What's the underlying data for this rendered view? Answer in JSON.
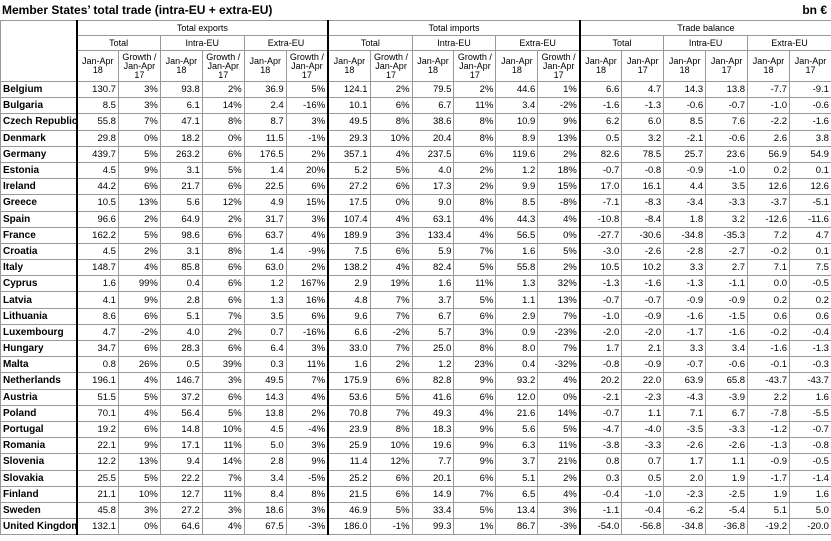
{
  "header": {
    "title": "Member States’ total trade (intra-EU + extra-EU)",
    "unit": "bn €"
  },
  "table": {
    "groups": [
      {
        "name": "Total exports",
        "subgroups": [
          {
            "name": "Total",
            "columns": [
              "Jan-Apr 18",
              "Growth / Jan-Apr 17"
            ]
          },
          {
            "name": "Intra-EU",
            "columns": [
              "Jan-Apr 18",
              "Growth / Jan-Apr 17"
            ]
          },
          {
            "name": "Extra-EU",
            "columns": [
              "Jan-Apr 18",
              "Growth / Jan-Apr 17"
            ]
          }
        ]
      },
      {
        "name": "Total imports",
        "subgroups": [
          {
            "name": "Total",
            "columns": [
              "Jan-Apr 18",
              "Growth / Jan-Apr 17"
            ]
          },
          {
            "name": "Intra-EU",
            "columns": [
              "Jan-Apr 18",
              "Growth / Jan-Apr 17"
            ]
          },
          {
            "name": "Extra-EU",
            "columns": [
              "Jan-Apr 18",
              "Growth / Jan-Apr 17"
            ]
          }
        ]
      },
      {
        "name": "Trade balance",
        "subgroups": [
          {
            "name": "Total",
            "columns": [
              "Jan-Apr 18",
              "Jan-Apr 17"
            ]
          },
          {
            "name": "Intra-EU",
            "columns": [
              "Jan-Apr 18",
              "Jan-Apr 17"
            ]
          },
          {
            "name": "Extra-EU",
            "columns": [
              "Jan-Apr 18",
              "Jan-Apr 17"
            ]
          }
        ]
      }
    ],
    "rows": [
      {
        "country": "Belgium",
        "values": [
          "130.7",
          "3%",
          "93.8",
          "2%",
          "36.9",
          "5%",
          "124.1",
          "2%",
          "79.5",
          "2%",
          "44.6",
          "1%",
          "6.6",
          "4.7",
          "14.3",
          "13.8",
          "-7.7",
          "-9.1"
        ]
      },
      {
        "country": "Bulgaria",
        "values": [
          "8.5",
          "3%",
          "6.1",
          "14%",
          "2.4",
          "-16%",
          "10.1",
          "6%",
          "6.7",
          "11%",
          "3.4",
          "-2%",
          "-1.6",
          "-1.3",
          "-0.6",
          "-0.7",
          "-1.0",
          "-0.6"
        ]
      },
      {
        "country": "Czech Republic",
        "values": [
          "55.8",
          "7%",
          "47.1",
          "8%",
          "8.7",
          "3%",
          "49.5",
          "8%",
          "38.6",
          "8%",
          "10.9",
          "9%",
          "6.2",
          "6.0",
          "8.5",
          "7.6",
          "-2.2",
          "-1.6"
        ]
      },
      {
        "country": "Denmark",
        "values": [
          "29.8",
          "0%",
          "18.2",
          "0%",
          "11.5",
          "-1%",
          "29.3",
          "10%",
          "20.4",
          "8%",
          "8.9",
          "13%",
          "0.5",
          "3.2",
          "-2.1",
          "-0.6",
          "2.6",
          "3.8"
        ]
      },
      {
        "country": "Germany",
        "values": [
          "439.7",
          "5%",
          "263.2",
          "6%",
          "176.5",
          "2%",
          "357.1",
          "4%",
          "237.5",
          "6%",
          "119.6",
          "2%",
          "82.6",
          "78.5",
          "25.7",
          "23.6",
          "56.9",
          "54.9"
        ]
      },
      {
        "country": "Estonia",
        "values": [
          "4.5",
          "9%",
          "3.1",
          "5%",
          "1.4",
          "20%",
          "5.2",
          "5%",
          "4.0",
          "2%",
          "1.2",
          "18%",
          "-0.7",
          "-0.8",
          "-0.9",
          "-1.0",
          "0.2",
          "0.1"
        ]
      },
      {
        "country": "Ireland",
        "values": [
          "44.2",
          "6%",
          "21.7",
          "6%",
          "22.5",
          "6%",
          "27.2",
          "6%",
          "17.3",
          "2%",
          "9.9",
          "15%",
          "17.0",
          "16.1",
          "4.4",
          "3.5",
          "12.6",
          "12.6"
        ]
      },
      {
        "country": "Greece",
        "values": [
          "10.5",
          "13%",
          "5.6",
          "12%",
          "4.9",
          "15%",
          "17.5",
          "0%",
          "9.0",
          "8%",
          "8.5",
          "-8%",
          "-7.1",
          "-8.3",
          "-3.4",
          "-3.3",
          "-3.7",
          "-5.1"
        ]
      },
      {
        "country": "Spain",
        "values": [
          "96.6",
          "2%",
          "64.9",
          "2%",
          "31.7",
          "3%",
          "107.4",
          "4%",
          "63.1",
          "4%",
          "44.3",
          "4%",
          "-10.8",
          "-8.4",
          "1.8",
          "3.2",
          "-12.6",
          "-11.6"
        ]
      },
      {
        "country": "France",
        "values": [
          "162.2",
          "5%",
          "98.6",
          "6%",
          "63.7",
          "4%",
          "189.9",
          "3%",
          "133.4",
          "4%",
          "56.5",
          "0%",
          "-27.7",
          "-30.6",
          "-34.8",
          "-35.3",
          "7.2",
          "4.7"
        ]
      },
      {
        "country": "Croatia",
        "values": [
          "4.5",
          "2%",
          "3.1",
          "8%",
          "1.4",
          "-9%",
          "7.5",
          "6%",
          "5.9",
          "7%",
          "1.6",
          "5%",
          "-3.0",
          "-2.6",
          "-2.8",
          "-2.7",
          "-0.2",
          "0.1"
        ]
      },
      {
        "country": "Italy",
        "values": [
          "148.7",
          "4%",
          "85.8",
          "6%",
          "63.0",
          "2%",
          "138.2",
          "4%",
          "82.4",
          "5%",
          "55.8",
          "2%",
          "10.5",
          "10.2",
          "3.3",
          "2.7",
          "7.1",
          "7.5"
        ]
      },
      {
        "country": "Cyprus",
        "values": [
          "1.6",
          "99%",
          "0.4",
          "6%",
          "1.2",
          "167%",
          "2.9",
          "19%",
          "1.6",
          "11%",
          "1.3",
          "32%",
          "-1.3",
          "-1.6",
          "-1.3",
          "-1.1",
          "0.0",
          "-0.5"
        ]
      },
      {
        "country": "Latvia",
        "values": [
          "4.1",
          "9%",
          "2.8",
          "6%",
          "1.3",
          "16%",
          "4.8",
          "7%",
          "3.7",
          "5%",
          "1.1",
          "13%",
          "-0.7",
          "-0.7",
          "-0.9",
          "-0.9",
          "0.2",
          "0.2"
        ]
      },
      {
        "country": "Lithuania",
        "values": [
          "8.6",
          "6%",
          "5.1",
          "7%",
          "3.5",
          "6%",
          "9.6",
          "7%",
          "6.7",
          "6%",
          "2.9",
          "7%",
          "-1.0",
          "-0.9",
          "-1.6",
          "-1.5",
          "0.6",
          "0.6"
        ]
      },
      {
        "country": "Luxembourg",
        "values": [
          "4.7",
          "-2%",
          "4.0",
          "2%",
          "0.7",
          "-16%",
          "6.6",
          "-2%",
          "5.7",
          "3%",
          "0.9",
          "-23%",
          "-2.0",
          "-2.0",
          "-1.7",
          "-1.6",
          "-0.2",
          "-0.4"
        ]
      },
      {
        "country": "Hungary",
        "values": [
          "34.7",
          "6%",
          "28.3",
          "6%",
          "6.4",
          "3%",
          "33.0",
          "7%",
          "25.0",
          "8%",
          "8.0",
          "7%",
          "1.7",
          "2.1",
          "3.3",
          "3.4",
          "-1.6",
          "-1.3"
        ]
      },
      {
        "country": "Malta",
        "values": [
          "0.8",
          "26%",
          "0.5",
          "39%",
          "0.3",
          "11%",
          "1.6",
          "2%",
          "1.2",
          "23%",
          "0.4",
          "-32%",
          "-0.8",
          "-0.9",
          "-0.7",
          "-0.6",
          "-0.1",
          "-0.3"
        ]
      },
      {
        "country": "Netherlands",
        "values": [
          "196.1",
          "4%",
          "146.7",
          "3%",
          "49.5",
          "7%",
          "175.9",
          "6%",
          "82.8",
          "9%",
          "93.2",
          "4%",
          "20.2",
          "22.0",
          "63.9",
          "65.8",
          "-43.7",
          "-43.7"
        ]
      },
      {
        "country": "Austria",
        "values": [
          "51.5",
          "5%",
          "37.2",
          "6%",
          "14.3",
          "4%",
          "53.6",
          "5%",
          "41.6",
          "6%",
          "12.0",
          "0%",
          "-2.1",
          "-2.3",
          "-4.3",
          "-3.9",
          "2.2",
          "1.6"
        ]
      },
      {
        "country": "Poland",
        "values": [
          "70.1",
          "4%",
          "56.4",
          "5%",
          "13.8",
          "2%",
          "70.8",
          "7%",
          "49.3",
          "4%",
          "21.6",
          "14%",
          "-0.7",
          "1.1",
          "7.1",
          "6.7",
          "-7.8",
          "-5.5"
        ]
      },
      {
        "country": "Portugal",
        "values": [
          "19.2",
          "6%",
          "14.8",
          "10%",
          "4.5",
          "-4%",
          "23.9",
          "8%",
          "18.3",
          "9%",
          "5.6",
          "5%",
          "-4.7",
          "-4.0",
          "-3.5",
          "-3.3",
          "-1.2",
          "-0.7"
        ]
      },
      {
        "country": "Romania",
        "values": [
          "22.1",
          "9%",
          "17.1",
          "11%",
          "5.0",
          "3%",
          "25.9",
          "10%",
          "19.6",
          "9%",
          "6.3",
          "11%",
          "-3.8",
          "-3.3",
          "-2.6",
          "-2.6",
          "-1.3",
          "-0.8"
        ]
      },
      {
        "country": "Slovenia",
        "values": [
          "12.2",
          "13%",
          "9.4",
          "14%",
          "2.8",
          "9%",
          "11.4",
          "12%",
          "7.7",
          "9%",
          "3.7",
          "21%",
          "0.8",
          "0.7",
          "1.7",
          "1.1",
          "-0.9",
          "-0.5"
        ]
      },
      {
        "country": "Slovakia",
        "values": [
          "25.5",
          "5%",
          "22.2",
          "7%",
          "3.4",
          "-5%",
          "25.2",
          "6%",
          "20.1",
          "6%",
          "5.1",
          "2%",
          "0.3",
          "0.5",
          "2.0",
          "1.9",
          "-1.7",
          "-1.4"
        ]
      },
      {
        "country": "Finland",
        "values": [
          "21.1",
          "10%",
          "12.7",
          "11%",
          "8.4",
          "8%",
          "21.5",
          "6%",
          "14.9",
          "7%",
          "6.5",
          "4%",
          "-0.4",
          "-1.0",
          "-2.3",
          "-2.5",
          "1.9",
          "1.6"
        ]
      },
      {
        "country": "Sweden",
        "values": [
          "45.8",
          "3%",
          "27.2",
          "3%",
          "18.6",
          "3%",
          "46.9",
          "5%",
          "33.4",
          "5%",
          "13.4",
          "3%",
          "-1.1",
          "-0.4",
          "-6.2",
          "-5.4",
          "5.1",
          "5.0"
        ]
      },
      {
        "country": "United Kingdom",
        "values": [
          "132.1",
          "0%",
          "64.6",
          "4%",
          "67.5",
          "-3%",
          "186.0",
          "-1%",
          "99.3",
          "1%",
          "86.7",
          "-3%",
          "-54.0",
          "-56.8",
          "-34.8",
          "-36.8",
          "-19.2",
          "-20.0"
        ]
      }
    ]
  }
}
